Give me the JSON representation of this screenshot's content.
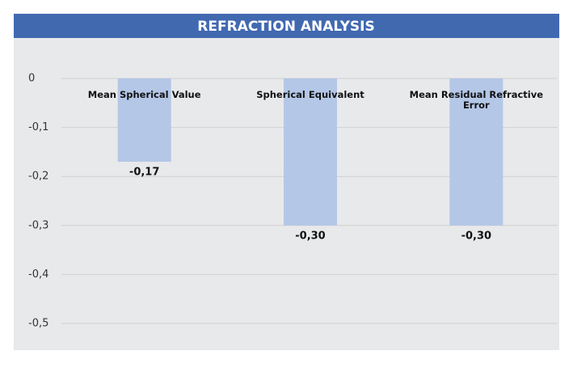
{
  "chart_data": {
    "type": "bar",
    "title": "REFRACTION ANALYSIS",
    "categories": [
      "Mean Spherical Value",
      "Spherical Equivalent",
      "Mean Residual Refractive Error"
    ],
    "values": [
      -0.17,
      -0.3,
      -0.3
    ],
    "value_labels": [
      "-0,17",
      "-0,30",
      "-0,30"
    ],
    "color": "#b4c7e7",
    "ylim": [
      -0.5,
      0
    ],
    "yticks": [
      0,
      {
        "value": -0.1,
        "label": "-0,1"
      },
      {
        "value": -0.2,
        "label": "-0,2"
      },
      {
        "value": -0.3,
        "label": "-0,3"
      },
      {
        "value": -0.4,
        "label": "-0,4"
      },
      {
        "value": -0.5,
        "label": "-0,5"
      }
    ],
    "grid": true
  }
}
